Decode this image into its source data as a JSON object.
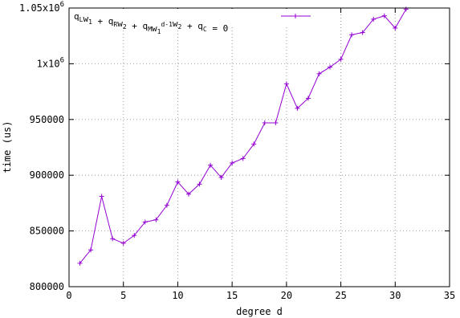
{
  "chart_data": {
    "type": "line",
    "xlabel": "degree d",
    "ylabel": "time (us)",
    "xlim": [
      0,
      35
    ],
    "ylim": [
      800000,
      1050000
    ],
    "x_ticks": [
      0,
      5,
      10,
      15,
      20,
      25,
      30,
      35
    ],
    "x_tick_labels": [
      "0",
      "5",
      "10",
      "15",
      "20",
      "25",
      "30",
      "35"
    ],
    "y_ticks": [
      800000,
      850000,
      900000,
      950000,
      1000000,
      1050000
    ],
    "y_tick_labels": [
      {
        "text": "800000"
      },
      {
        "text": "850000"
      },
      {
        "text": "900000"
      },
      {
        "text": "950000"
      },
      {
        "base": "1x10",
        "exp": "6"
      },
      {
        "base": "1.05x10",
        "exp": "6"
      }
    ],
    "grid": true,
    "legend_position": "top-right",
    "series": [
      {
        "legend": {
          "parts": [
            {
              "t": "q"
            },
            {
              "t": "L",
              "sub": true
            },
            {
              "t": "w"
            },
            {
              "t": "1",
              "sub": true
            },
            {
              "t": " + q"
            },
            {
              "t": "R",
              "sub": true
            },
            {
              "t": "w"
            },
            {
              "t": "2",
              "sub": true
            },
            {
              "t": " + q"
            },
            {
              "t": "M",
              "sub": true
            },
            {
              "t": "w"
            },
            {
              "t": "1",
              "sub": true
            },
            {
              "t": "d-1",
              "sup": true
            },
            {
              "t": "w"
            },
            {
              "t": "2",
              "sub": true
            },
            {
              "t": " + q"
            },
            {
              "t": "C",
              "sub": true
            },
            {
              "t": " = 0"
            }
          ]
        },
        "color": "#9400d3",
        "x": [
          1,
          2,
          3,
          4,
          5,
          6,
          7,
          8,
          9,
          10,
          11,
          12,
          13,
          14,
          15,
          16,
          17,
          18,
          19,
          20,
          21,
          22,
          23,
          24,
          25,
          26,
          27,
          28,
          29,
          30,
          31
        ],
        "y": [
          821000,
          833000,
          881000,
          843000,
          839000,
          846000,
          858000,
          860000,
          873000,
          894000,
          883000,
          892000,
          909000,
          898000,
          911000,
          915000,
          928000,
          947000,
          947000,
          982000,
          960000,
          969000,
          991000,
          997000,
          1004000,
          1026000,
          1028000,
          1040000,
          1043000,
          1032000,
          1049000
        ]
      }
    ]
  }
}
